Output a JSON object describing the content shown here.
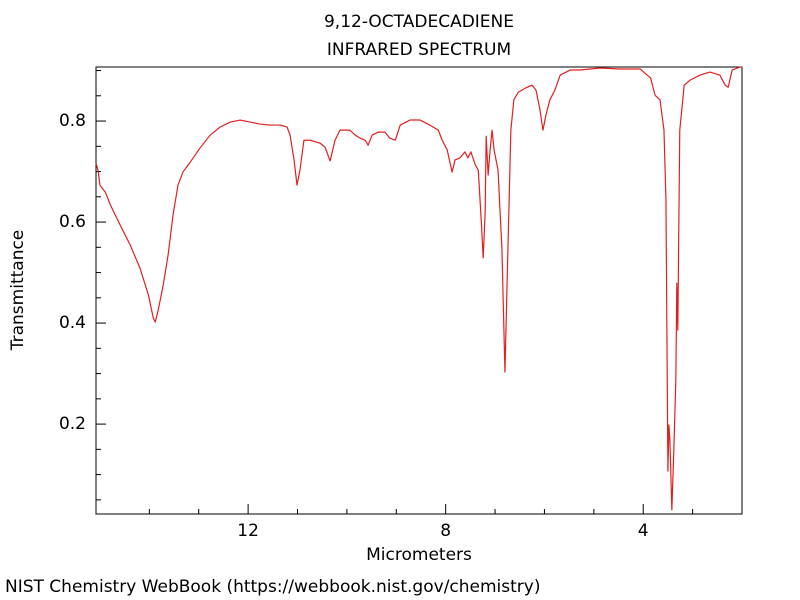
{
  "chart_data": {
    "type": "line",
    "title": "9,12-OCTADECADIENE",
    "subtitle": "INFRARED SPECTRUM",
    "x_label": "Micrometers",
    "y_label": "Transmittance",
    "source": "NIST Chemistry WebBook (https://webbook.nist.gov/chemistry)",
    "x": [
      15.08,
      15.04,
      15.0,
      14.89,
      14.79,
      14.59,
      14.39,
      14.19,
      14.02,
      13.92,
      13.88,
      13.82,
      13.72,
      13.62,
      13.52,
      13.42,
      13.32,
      13.17,
      12.97,
      12.77,
      12.57,
      12.36,
      12.16,
      11.96,
      11.76,
      11.55,
      11.35,
      11.21,
      11.15,
      11.07,
      11.01,
      10.95,
      10.87,
      10.74,
      10.54,
      10.44,
      10.34,
      10.24,
      10.14,
      9.94,
      9.83,
      9.73,
      9.63,
      9.57,
      9.49,
      9.37,
      9.23,
      9.13,
      9.02,
      8.92,
      8.72,
      8.52,
      8.32,
      8.15,
      8.07,
      7.97,
      7.87,
      7.81,
      7.71,
      7.61,
      7.55,
      7.49,
      7.4,
      7.34,
      7.28,
      7.24,
      7.2,
      7.18,
      7.14,
      7.1,
      7.06,
      7.02,
      6.94,
      6.86,
      6.8,
      6.74,
      6.68,
      6.62,
      6.53,
      6.39,
      6.25,
      6.17,
      6.09,
      6.03,
      5.97,
      5.89,
      5.79,
      5.68,
      5.48,
      5.28,
      4.87,
      4.47,
      4.06,
      3.85,
      3.76,
      3.66,
      3.58,
      3.54,
      3.5,
      3.48,
      3.46,
      3.42,
      3.38,
      3.34,
      3.32,
      3.3,
      3.26,
      3.17,
      3.05,
      2.85,
      2.65,
      2.45,
      2.34,
      2.28,
      2.2,
      2.04,
      2.0
    ],
    "series": [
      {
        "color": "#e02020",
        "values": [
          0.717,
          0.703,
          0.673,
          0.659,
          0.634,
          0.594,
          0.555,
          0.509,
          0.456,
          0.41,
          0.402,
          0.426,
          0.475,
          0.535,
          0.614,
          0.673,
          0.699,
          0.719,
          0.747,
          0.772,
          0.788,
          0.798,
          0.802,
          0.798,
          0.794,
          0.792,
          0.792,
          0.788,
          0.772,
          0.723,
          0.673,
          0.703,
          0.762,
          0.762,
          0.756,
          0.748,
          0.721,
          0.762,
          0.782,
          0.782,
          0.772,
          0.766,
          0.762,
          0.752,
          0.772,
          0.778,
          0.778,
          0.766,
          0.762,
          0.792,
          0.802,
          0.802,
          0.792,
          0.782,
          0.762,
          0.743,
          0.699,
          0.723,
          0.727,
          0.739,
          0.727,
          0.739,
          0.713,
          0.703,
          0.604,
          0.529,
          0.622,
          0.77,
          0.693,
          0.743,
          0.782,
          0.743,
          0.703,
          0.545,
          0.303,
          0.545,
          0.782,
          0.842,
          0.857,
          0.865,
          0.871,
          0.861,
          0.822,
          0.782,
          0.812,
          0.842,
          0.861,
          0.891,
          0.901,
          0.901,
          0.905,
          0.903,
          0.903,
          0.885,
          0.851,
          0.842,
          0.782,
          0.644,
          0.107,
          0.198,
          0.168,
          0.03,
          0.149,
          0.287,
          0.479,
          0.386,
          0.782,
          0.871,
          0.881,
          0.891,
          0.897,
          0.891,
          0.871,
          0.867,
          0.901,
          0.907,
          0.907
        ]
      }
    ],
    "xlim": [
      15.08,
      2.0
    ],
    "ylim": [
      0.022,
      0.907
    ],
    "xticks": [
      12,
      8,
      4
    ],
    "yticks": [
      0.2,
      0.4,
      0.6,
      0.8
    ],
    "xminorticks": [
      14,
      13,
      11,
      10,
      9,
      7,
      6,
      5,
      3,
      2
    ],
    "yminorticks": [
      0.05,
      0.1,
      0.15,
      0.25,
      0.3,
      0.35,
      0.45,
      0.5,
      0.55,
      0.65,
      0.7,
      0.75,
      0.85,
      0.9
    ]
  }
}
